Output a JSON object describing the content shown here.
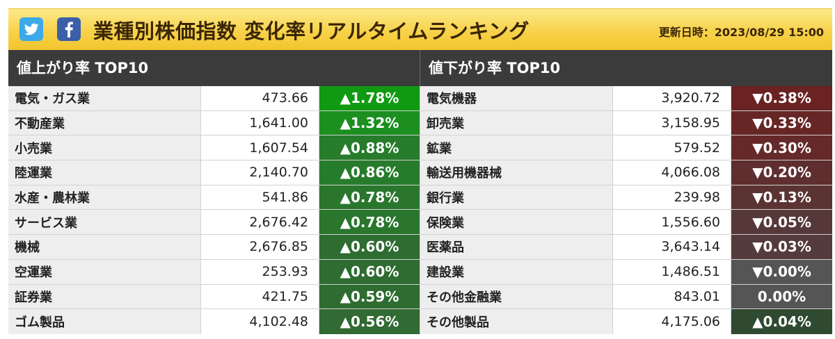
{
  "header": {
    "title": "業種別株価指数 変化率リアルタイムランキング",
    "updated_label": "更新日時：",
    "updated_value": "2023/08/29 15:00",
    "twitter_icon": "twitter-bird-icon",
    "facebook_icon": "facebook-f-icon"
  },
  "gainers": {
    "title": "値上がり率 TOP10",
    "rows": [
      {
        "name": "電気・ガス業",
        "price": "473.66",
        "change": "▲1.78%",
        "color": "#0f9a12"
      },
      {
        "name": "不動産業",
        "price": "1,641.00",
        "change": "▲1.32%",
        "color": "#1c8f20"
      },
      {
        "name": "小売業",
        "price": "1,607.54",
        "change": "▲0.88%",
        "color": "#277c2b"
      },
      {
        "name": "陸運業",
        "price": "2,140.70",
        "change": "▲0.86%",
        "color": "#277c2b"
      },
      {
        "name": "水産・農林業",
        "price": "541.86",
        "change": "▲0.78%",
        "color": "#2a762d"
      },
      {
        "name": "サービス業",
        "price": "2,676.42",
        "change": "▲0.78%",
        "color": "#2a762d"
      },
      {
        "name": "機械",
        "price": "2,676.85",
        "change": "▲0.60%",
        "color": "#2e6c31"
      },
      {
        "name": "空運業",
        "price": "253.93",
        "change": "▲0.60%",
        "color": "#2e6c31"
      },
      {
        "name": "証券業",
        "price": "421.75",
        "change": "▲0.59%",
        "color": "#2e6c31"
      },
      {
        "name": "ゴム製品",
        "price": "4,102.48",
        "change": "▲0.56%",
        "color": "#316a33"
      }
    ]
  },
  "losers": {
    "title": "値下がり率 TOP10",
    "rows": [
      {
        "name": "電気機器",
        "price": "3,920.72",
        "change": "▼0.38%",
        "color": "#6a2222"
      },
      {
        "name": "卸売業",
        "price": "3,158.95",
        "change": "▼0.33%",
        "color": "#672626"
      },
      {
        "name": "鉱業",
        "price": "579.52",
        "change": "▼0.30%",
        "color": "#652929"
      },
      {
        "name": "輸送用機器械",
        "price": "4,066.08",
        "change": "▼0.20%",
        "color": "#5f2e2e"
      },
      {
        "name": "銀行業",
        "price": "239.98",
        "change": "▼0.13%",
        "color": "#5b3333"
      },
      {
        "name": "保険業",
        "price": "1,556.60",
        "change": "▼0.05%",
        "color": "#573838"
      },
      {
        "name": "医薬品",
        "price": "3,643.14",
        "change": "▼0.03%",
        "color": "#553b3b"
      },
      {
        "name": "建設業",
        "price": "1,486.51",
        "change": "▼0.00%",
        "color": "#555555"
      },
      {
        "name": "その他金融業",
        "price": "843.01",
        "change": "0.00%",
        "color": "#555555"
      },
      {
        "name": "その他製品",
        "price": "4,175.06",
        "change": "▲0.04%",
        "color": "#2f4a31"
      }
    ]
  }
}
